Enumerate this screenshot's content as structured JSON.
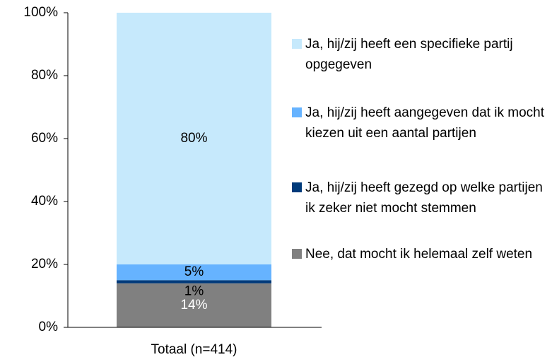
{
  "chart_data": {
    "type": "stacked_bar",
    "categories": [
      "Totaal (n=414)"
    ],
    "series": [
      {
        "name": "Ja, hij/zij heeft een specifieke partij opgegeven",
        "color": "#c6e9fc",
        "label_color": "#000000",
        "values": [
          80
        ],
        "value_labels": [
          "80%"
        ]
      },
      {
        "name": "Ja, hij/zij heeft aangegeven dat ik mocht kiezen uit een aantal partijen",
        "color": "#66b3ff",
        "label_color": "#000000",
        "values": [
          5
        ],
        "value_labels": [
          "5%"
        ]
      },
      {
        "name": "Ja, hij/zij heeft gezegd op welke partijen ik zeker niet mocht stemmen",
        "color": "#003a7a",
        "label_color": "#000000",
        "values": [
          1
        ],
        "value_labels": [
          "1%"
        ]
      },
      {
        "name": "Nee, dat mocht ik helemaal zelf weten",
        "color": "#808080",
        "label_color": "#ffffff",
        "values": [
          14
        ],
        "value_labels": [
          "14%"
        ]
      }
    ],
    "ylim": [
      0,
      100
    ],
    "yticks": [
      {
        "value": 0,
        "label": "0%"
      },
      {
        "value": 20,
        "label": "20%"
      },
      {
        "value": 40,
        "label": "40%"
      },
      {
        "value": 60,
        "label": "60%"
      },
      {
        "value": 80,
        "label": "80%"
      },
      {
        "value": 100,
        "label": "100%"
      }
    ],
    "legend": "right"
  }
}
